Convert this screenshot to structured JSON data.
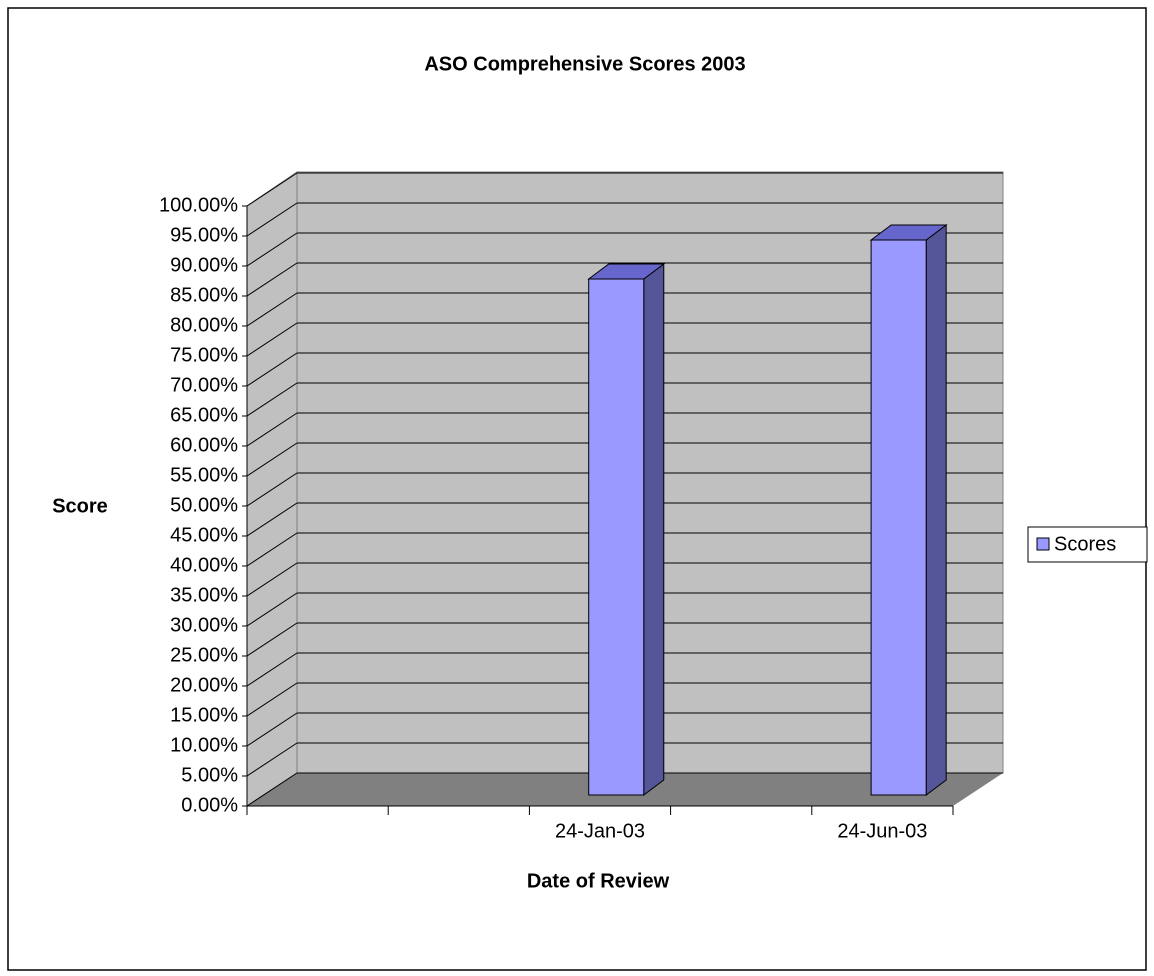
{
  "chart_data": {
    "type": "bar3d",
    "title": "ASO Comprehensive Scores 2003",
    "y_label": "Score",
    "x_label": "Date of Review",
    "categories": [
      null,
      null,
      "24-Jan-03",
      null,
      "24-Jun-03"
    ],
    "series": [
      {
        "name": "Scores",
        "color": "#9999ff",
        "values": [
          null,
          null,
          86,
          null,
          92.5
        ]
      }
    ],
    "ylim": [
      0,
      100
    ],
    "yticks": [
      {
        "value": 0,
        "label": "0.00%"
      },
      {
        "value": 5,
        "label": "5.00%"
      },
      {
        "value": 10,
        "label": "10.00%"
      },
      {
        "value": 15,
        "label": "15.00%"
      },
      {
        "value": 20,
        "label": "20.00%"
      },
      {
        "value": 25,
        "label": "25.00%"
      },
      {
        "value": 30,
        "label": "30.00%"
      },
      {
        "value": 35,
        "label": "35.00%"
      },
      {
        "value": 40,
        "label": "40.00%"
      },
      {
        "value": 45,
        "label": "45.00%"
      },
      {
        "value": 50,
        "label": "50.00%"
      },
      {
        "value": 55,
        "label": "55.00%"
      },
      {
        "value": 60,
        "label": "60.00%"
      },
      {
        "value": 65,
        "label": "65.00%"
      },
      {
        "value": 70,
        "label": "70.00%"
      },
      {
        "value": 75,
        "label": "75.00%"
      },
      {
        "value": 80,
        "label": "80.00%"
      },
      {
        "value": 85,
        "label": "85.00%"
      },
      {
        "value": 90,
        "label": "90.00%"
      },
      {
        "value": 95,
        "label": "95.00%"
      },
      {
        "value": 100,
        "label": "100.00%"
      }
    ],
    "grid": true,
    "legend": "right"
  }
}
